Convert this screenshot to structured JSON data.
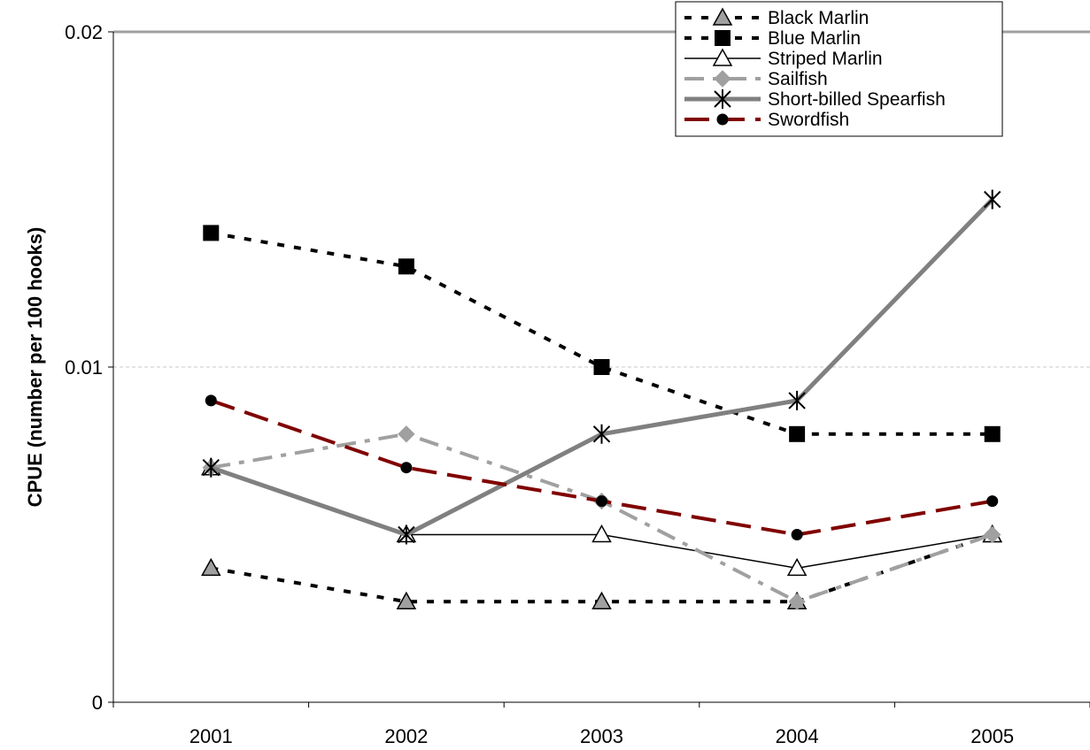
{
  "chart_data": {
    "type": "line",
    "title": "",
    "xlabel": "",
    "ylabel": "CPUE (number per 100 hooks)",
    "categories": [
      "2001",
      "2002",
      "2003",
      "2004",
      "2005"
    ],
    "ylim": [
      0,
      0.02
    ],
    "yticks": [
      {
        "value": 0,
        "label": "0"
      },
      {
        "value": 0.01,
        "label": "0.01"
      },
      {
        "value": 0.02,
        "label": "0.02"
      }
    ],
    "grid": "horizontal-major",
    "legend_position": "top-right",
    "series": [
      {
        "name": "Black Marlin",
        "values": [
          0.004,
          0.003,
          0.003,
          0.003,
          0.005
        ],
        "color": "#000000",
        "line": "dotted",
        "marker": "triangle-gray"
      },
      {
        "name": "Blue Marlin",
        "values": [
          0.014,
          0.013,
          0.01,
          0.008,
          0.008
        ],
        "color": "#000000",
        "line": "dotted",
        "marker": "square-black"
      },
      {
        "name": "Striped Marlin",
        "values": [
          0.007,
          0.005,
          0.005,
          0.004,
          0.005
        ],
        "color": "#000000",
        "line": "solid-thin",
        "marker": "triangle-white"
      },
      {
        "name": "Sailfish",
        "values": [
          0.007,
          0.008,
          0.006,
          0.003,
          0.005
        ],
        "color": "#a0a0a0",
        "line": "dash-dot",
        "marker": "diamond-gray"
      },
      {
        "name": "Short-billed Spearfish",
        "values": [
          0.007,
          0.005,
          0.008,
          0.009,
          0.015
        ],
        "color": "#808080",
        "line": "solid-thick",
        "marker": "asterisk"
      },
      {
        "name": "Swordfish",
        "values": [
          0.009,
          0.007,
          0.006,
          0.005,
          0.006
        ],
        "color": "#800000",
        "line": "long-dash",
        "marker": "circle-black"
      }
    ]
  }
}
